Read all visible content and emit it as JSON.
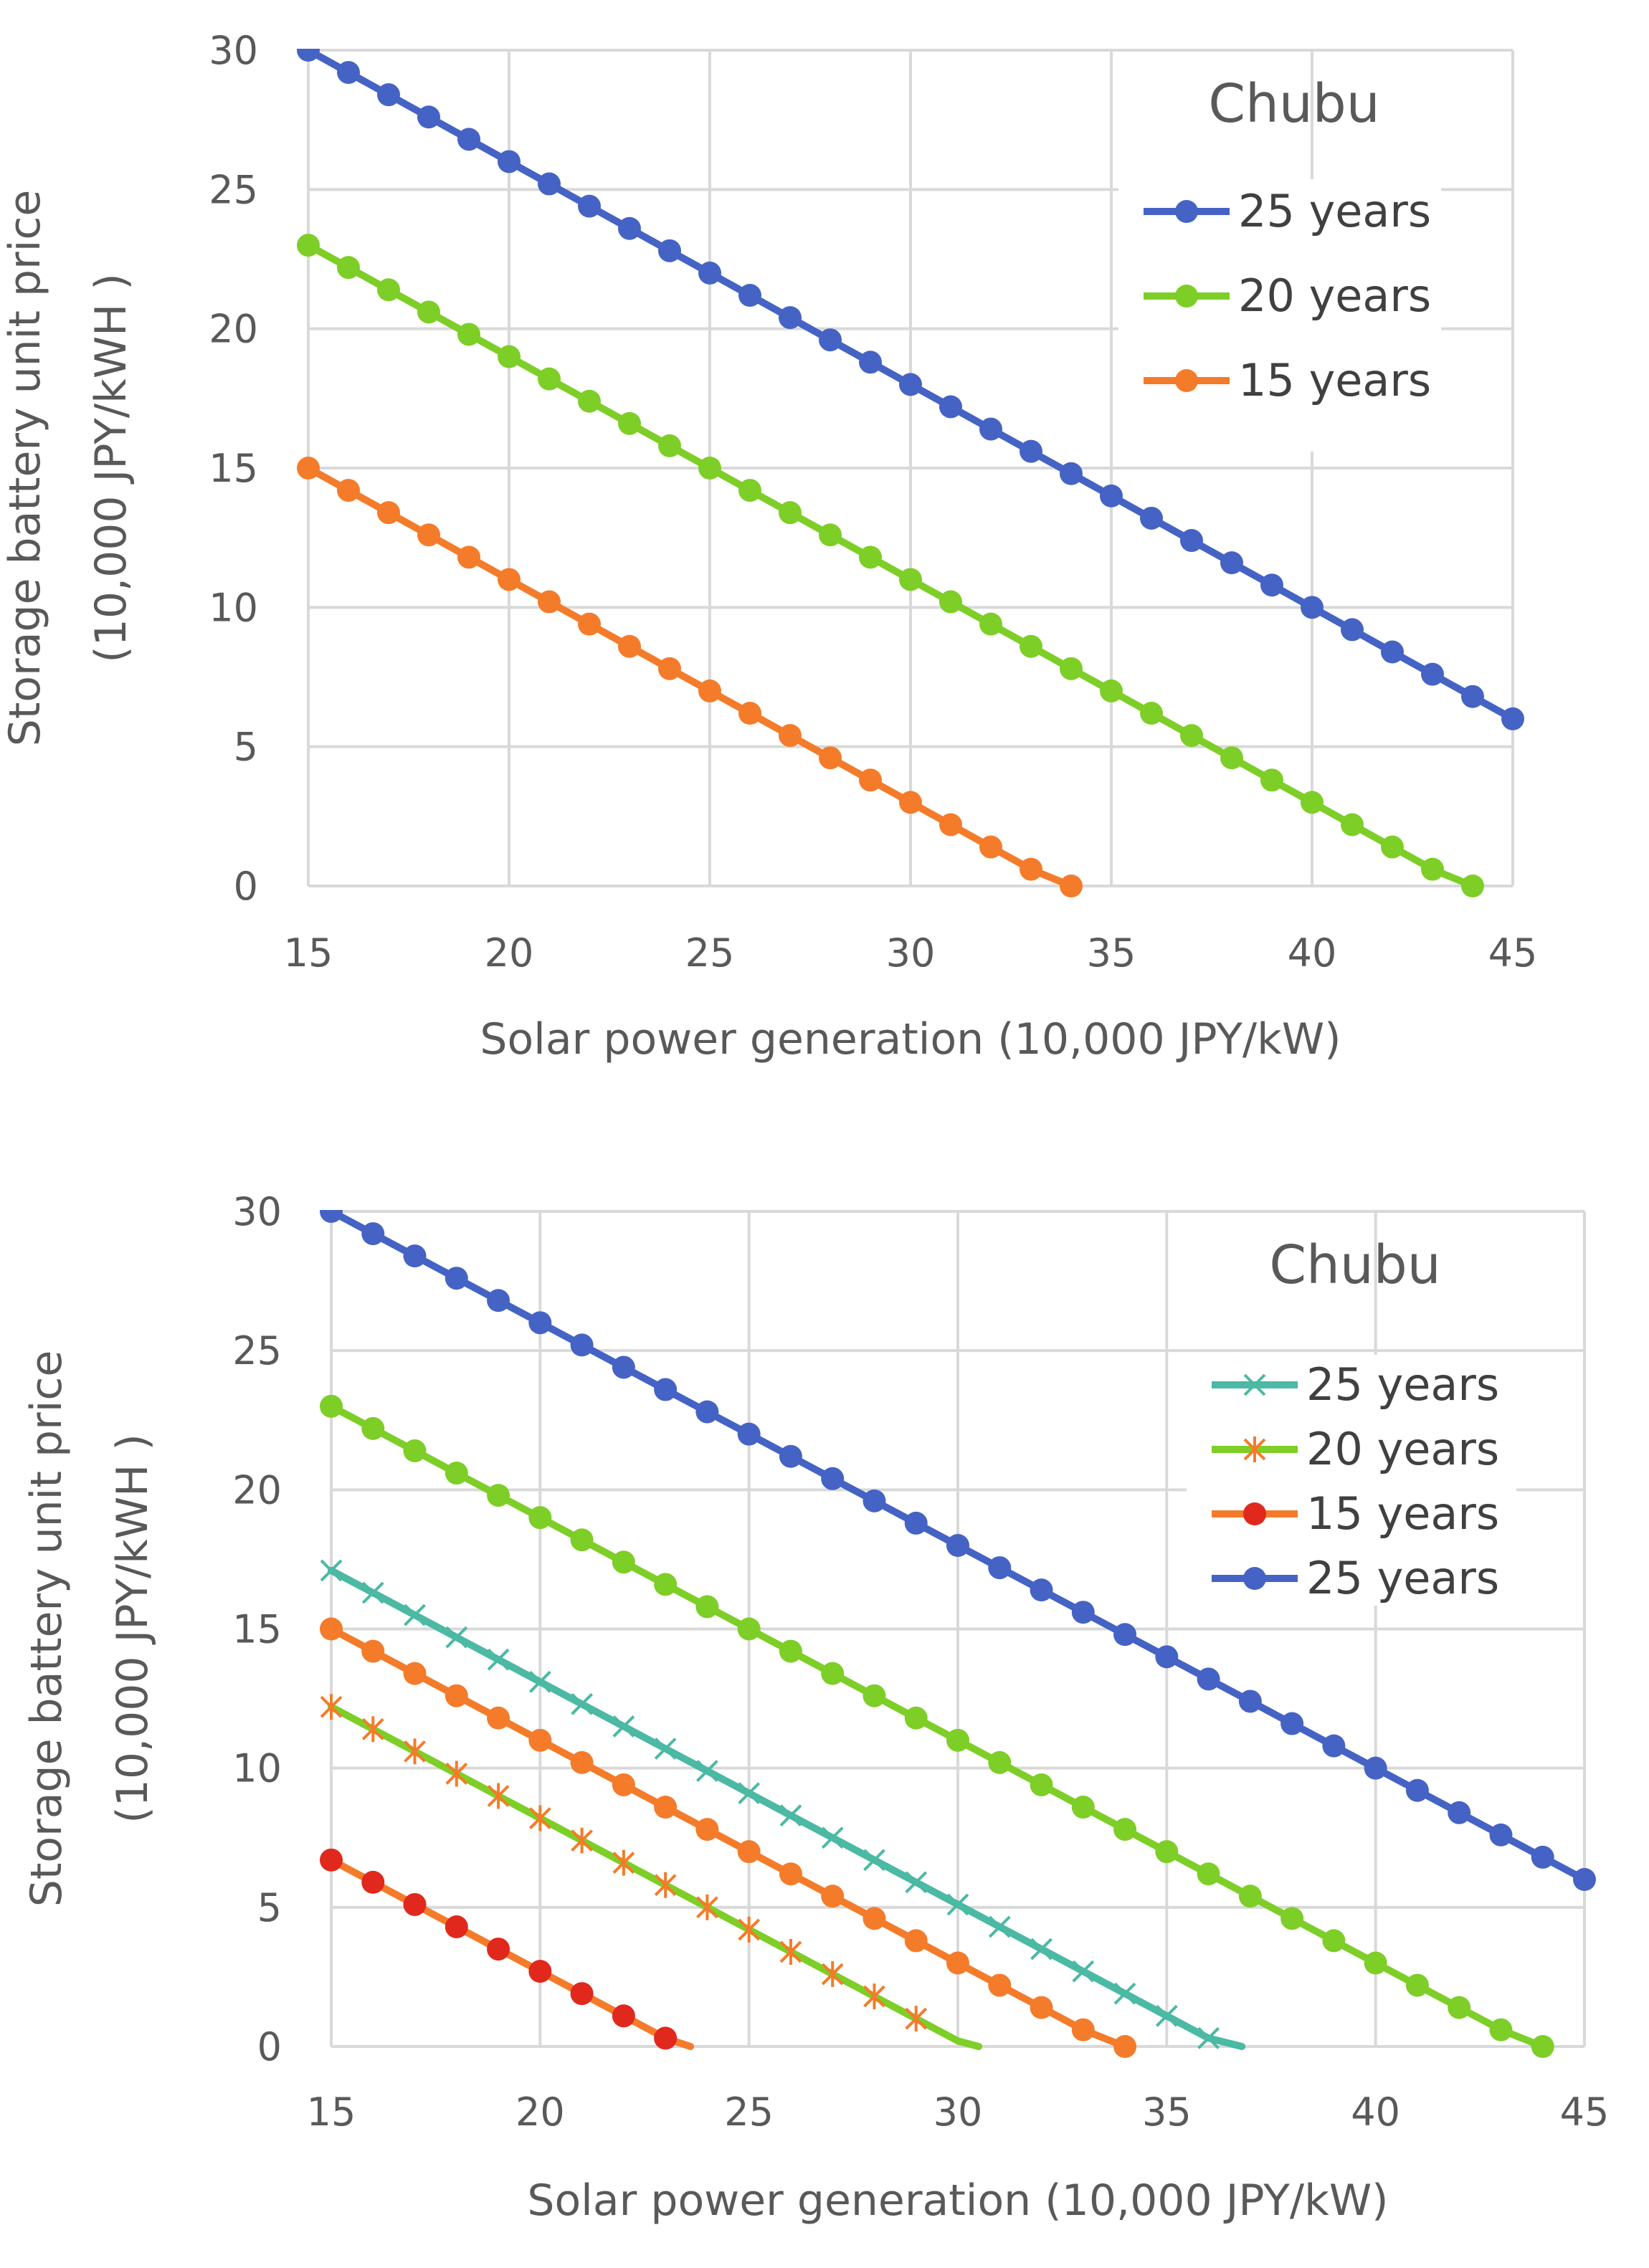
{
  "chart_data": [
    {
      "type": "line",
      "title": "Chubu",
      "xlabel": "Solar power generation (10,000 JPY/kW)",
      "ylabel": [
        "Storage battery unit price",
        "(10,000 JPY/kWH )"
      ],
      "xlim": [
        15,
        45
      ],
      "ylim": [
        0,
        30
      ],
      "xticks": [
        "15",
        "20",
        "25",
        "30",
        "35",
        "40",
        "45"
      ],
      "yticks": [
        "0",
        "5",
        "10",
        "15",
        "20",
        "25",
        "30"
      ],
      "grid": true,
      "legend_position": "top-right",
      "series": [
        {
          "name": "25 years",
          "color": "#4563C4",
          "marker": "circle",
          "x": [
            15,
            16,
            17,
            18,
            19,
            20,
            21,
            22,
            23,
            24,
            25,
            26,
            27,
            28,
            29,
            30,
            31,
            32,
            33,
            34,
            35,
            36,
            37,
            38,
            39,
            40,
            41,
            42,
            43,
            44,
            45
          ],
          "y": [
            30.0,
            29.2,
            28.4,
            27.6,
            26.8,
            26.0,
            25.2,
            24.4,
            23.6,
            22.8,
            22.0,
            21.2,
            20.4,
            19.6,
            18.8,
            18.0,
            17.2,
            16.4,
            15.6,
            14.8,
            14.0,
            13.2,
            12.4,
            11.6,
            10.8,
            10.0,
            9.2,
            8.4,
            7.6,
            6.8,
            6.0
          ]
        },
        {
          "name": "20 years",
          "color": "#7DCE27",
          "marker": "circle",
          "x": [
            15,
            16,
            17,
            18,
            19,
            20,
            21,
            22,
            23,
            24,
            25,
            26,
            27,
            28,
            29,
            30,
            31,
            32,
            33,
            34,
            35,
            36,
            37,
            38,
            39,
            40,
            41,
            42,
            43,
            44
          ],
          "y": [
            23.0,
            22.2,
            21.4,
            20.6,
            19.8,
            19.0,
            18.2,
            17.4,
            16.6,
            15.8,
            15.0,
            14.2,
            13.4,
            12.6,
            11.8,
            11.0,
            10.2,
            9.4,
            8.6,
            7.8,
            7.0,
            6.2,
            5.4,
            4.6,
            3.8,
            3.0,
            2.2,
            1.4,
            0.6,
            0.0
          ]
        },
        {
          "name": "15 years",
          "color": "#F47B2A",
          "marker": "circle",
          "x": [
            15,
            16,
            17,
            18,
            19,
            20,
            21,
            22,
            23,
            24,
            25,
            26,
            27,
            28,
            29,
            30,
            31,
            32,
            33,
            34
          ],
          "y": [
            15.0,
            14.2,
            13.4,
            12.6,
            11.8,
            11.0,
            10.2,
            9.4,
            8.6,
            7.8,
            7.0,
            6.2,
            5.4,
            4.6,
            3.8,
            3.0,
            2.2,
            1.4,
            0.6,
            0.0
          ]
        }
      ]
    },
    {
      "type": "line",
      "title": "Chubu",
      "xlabel": "Solar power generation (10,000 JPY/kW)",
      "ylabel": [
        "Storage battery unit price",
        "(10,000 JPY/kWH )"
      ],
      "xlim": [
        15,
        45
      ],
      "ylim": [
        0,
        30
      ],
      "xticks": [
        "15",
        "20",
        "25",
        "30",
        "35",
        "40",
        "45"
      ],
      "yticks": [
        "0",
        "5",
        "10",
        "15",
        "20",
        "25",
        "30"
      ],
      "grid": true,
      "legend_position": "top-right",
      "series": [
        {
          "name": "25 years",
          "color": "#4BB9A4",
          "marker": "x",
          "legend_order": 1,
          "x": [
            15,
            16,
            17,
            18,
            19,
            20,
            21,
            22,
            23,
            24,
            25,
            26,
            27,
            28,
            29,
            30,
            31,
            32,
            33,
            34,
            35,
            36,
            36.8
          ],
          "y": [
            17.1,
            16.3,
            15.5,
            14.7,
            13.9,
            13.1,
            12.3,
            11.5,
            10.7,
            9.9,
            9.1,
            8.3,
            7.5,
            6.7,
            5.9,
            5.1,
            4.3,
            3.5,
            2.7,
            1.9,
            1.1,
            0.3,
            0.0
          ],
          "marker_count": 22
        },
        {
          "name": "20 years",
          "color": "#7DCE27",
          "marker_color": "#F47B2A",
          "marker": "asterisk",
          "legend_order": 2,
          "x": [
            15,
            16,
            17,
            18,
            19,
            20,
            21,
            22,
            23,
            24,
            25,
            26,
            27,
            28,
            29,
            30,
            30.5
          ],
          "y": [
            12.2,
            11.4,
            10.6,
            9.8,
            9.0,
            8.2,
            7.4,
            6.6,
            5.8,
            5.0,
            4.2,
            3.4,
            2.6,
            1.8,
            1.0,
            0.2,
            0.0
          ],
          "marker_count": 15
        },
        {
          "name": "15 years",
          "color": "#F47B2A",
          "marker_color": "#E0281C",
          "marker": "circle",
          "legend_order": 3,
          "x": [
            15,
            16,
            17,
            18,
            19,
            20,
            21,
            22,
            23,
            23.6
          ],
          "y": [
            6.7,
            5.9,
            5.1,
            4.3,
            3.5,
            2.7,
            1.9,
            1.1,
            0.3,
            0.0
          ],
          "marker_count": 9
        },
        {
          "name": "25 years",
          "color": "#4563C4",
          "marker": "circle",
          "legend_order": 4,
          "x": [
            15,
            16,
            17,
            18,
            19,
            20,
            21,
            22,
            23,
            24,
            25,
            26,
            27,
            28,
            29,
            30,
            31,
            32,
            33,
            34,
            35,
            36,
            37,
            38,
            39,
            40,
            41,
            42,
            43,
            44,
            45
          ],
          "y": [
            30.0,
            29.2,
            28.4,
            27.6,
            26.8,
            26.0,
            25.2,
            24.4,
            23.6,
            22.8,
            22.0,
            21.2,
            20.4,
            19.6,
            18.8,
            18.0,
            17.2,
            16.4,
            15.6,
            14.8,
            14.0,
            13.2,
            12.4,
            11.6,
            10.8,
            10.0,
            9.2,
            8.4,
            7.6,
            6.8,
            6.0
          ]
        },
        {
          "name": "",
          "color": "#7DCE27",
          "marker": "circle",
          "x": [
            15,
            16,
            17,
            18,
            19,
            20,
            21,
            22,
            23,
            24,
            25,
            26,
            27,
            28,
            29,
            30,
            31,
            32,
            33,
            34,
            35,
            36,
            37,
            38,
            39,
            40,
            41,
            42,
            43,
            44
          ],
          "y": [
            23.0,
            22.2,
            21.4,
            20.6,
            19.8,
            19.0,
            18.2,
            17.4,
            16.6,
            15.8,
            15.0,
            14.2,
            13.4,
            12.6,
            11.8,
            11.0,
            10.2,
            9.4,
            8.6,
            7.8,
            7.0,
            6.2,
            5.4,
            4.6,
            3.8,
            3.0,
            2.2,
            1.4,
            0.6,
            0.0
          ]
        },
        {
          "name": "",
          "color": "#F47B2A",
          "marker": "circle",
          "x": [
            15,
            16,
            17,
            18,
            19,
            20,
            21,
            22,
            23,
            24,
            25,
            26,
            27,
            28,
            29,
            30,
            31,
            32,
            33,
            34
          ],
          "y": [
            15.0,
            14.2,
            13.4,
            12.6,
            11.8,
            11.0,
            10.2,
            9.4,
            8.6,
            7.8,
            7.0,
            6.2,
            5.4,
            4.6,
            3.8,
            3.0,
            2.2,
            1.4,
            0.6,
            0.0
          ]
        }
      ]
    }
  ]
}
